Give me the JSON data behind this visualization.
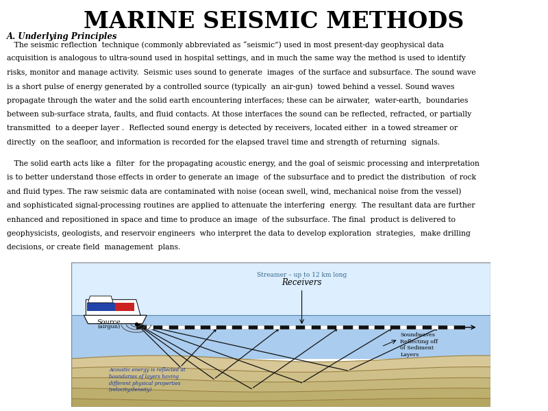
{
  "title": "MARINE SEISMIC METHODS",
  "section_heading": "A. Underlying Principles",
  "paragraph1_lines": [
    "   The seismic reflection  technique (commonly abbreviated as “seismic”) used in most present-day geophysical data",
    "acquisition is analogous to ultra-sound used in hospital settings, and in much the same way the method is used to identify",
    "risks, monitor and manage activity.  Seismic uses sound to generate  images  of the surface and subsurface. The sound wave",
    "is a short pulse of energy generated by a controlled source (typically  an air-gun)  towed behind a vessel. Sound waves",
    "propagate through the water and the solid earth encountering interfaces; these can be airwater,  water-earth,  boundaries",
    "between sub-surface strata, faults, and fluid contacts. At those interfaces the sound can be reflected, refracted, or partially",
    "transmitted  to a deeper layer .  Reflected sound energy is detected by receivers, located either  in a towed streamer or",
    "directly  on the seafloor, and information is recorded for the elapsed travel time and strength of returning  signals."
  ],
  "paragraph2_lines": [
    "   The solid earth acts like a  filter  for the propagating acoustic energy, and the goal of seismic processing and interpretation",
    "is to better understand those effects in order to generate an image  of the subsurface and to predict the distribution  of rock",
    "and fluid types. The raw seismic data are contaminated with noise (ocean swell, wind, mechanical noise from the vessel)",
    "and sophisticated signal-processing routines are applied to attenuate the interfering  energy.  The resultant data are further",
    "enhanced and repositioned in space and time to produce an image  of the subsurface. The final  product is delivered to",
    "geophysicists, geologists, and reservoir engineers  who interpret the data to develop exploration  strategies,  make drilling",
    "decisions, or create field  management  plans."
  ],
  "bg_color": "#ffffff",
  "text_color": "#000000",
  "diagram_border_color": "#888888",
  "water_color": "#aaccee",
  "sky_color": "#ddeeff",
  "streamer_color": "#222222",
  "ray_color": "#111111",
  "ship_red_color": "#cc2222",
  "ship_blue_color": "#2244aa"
}
